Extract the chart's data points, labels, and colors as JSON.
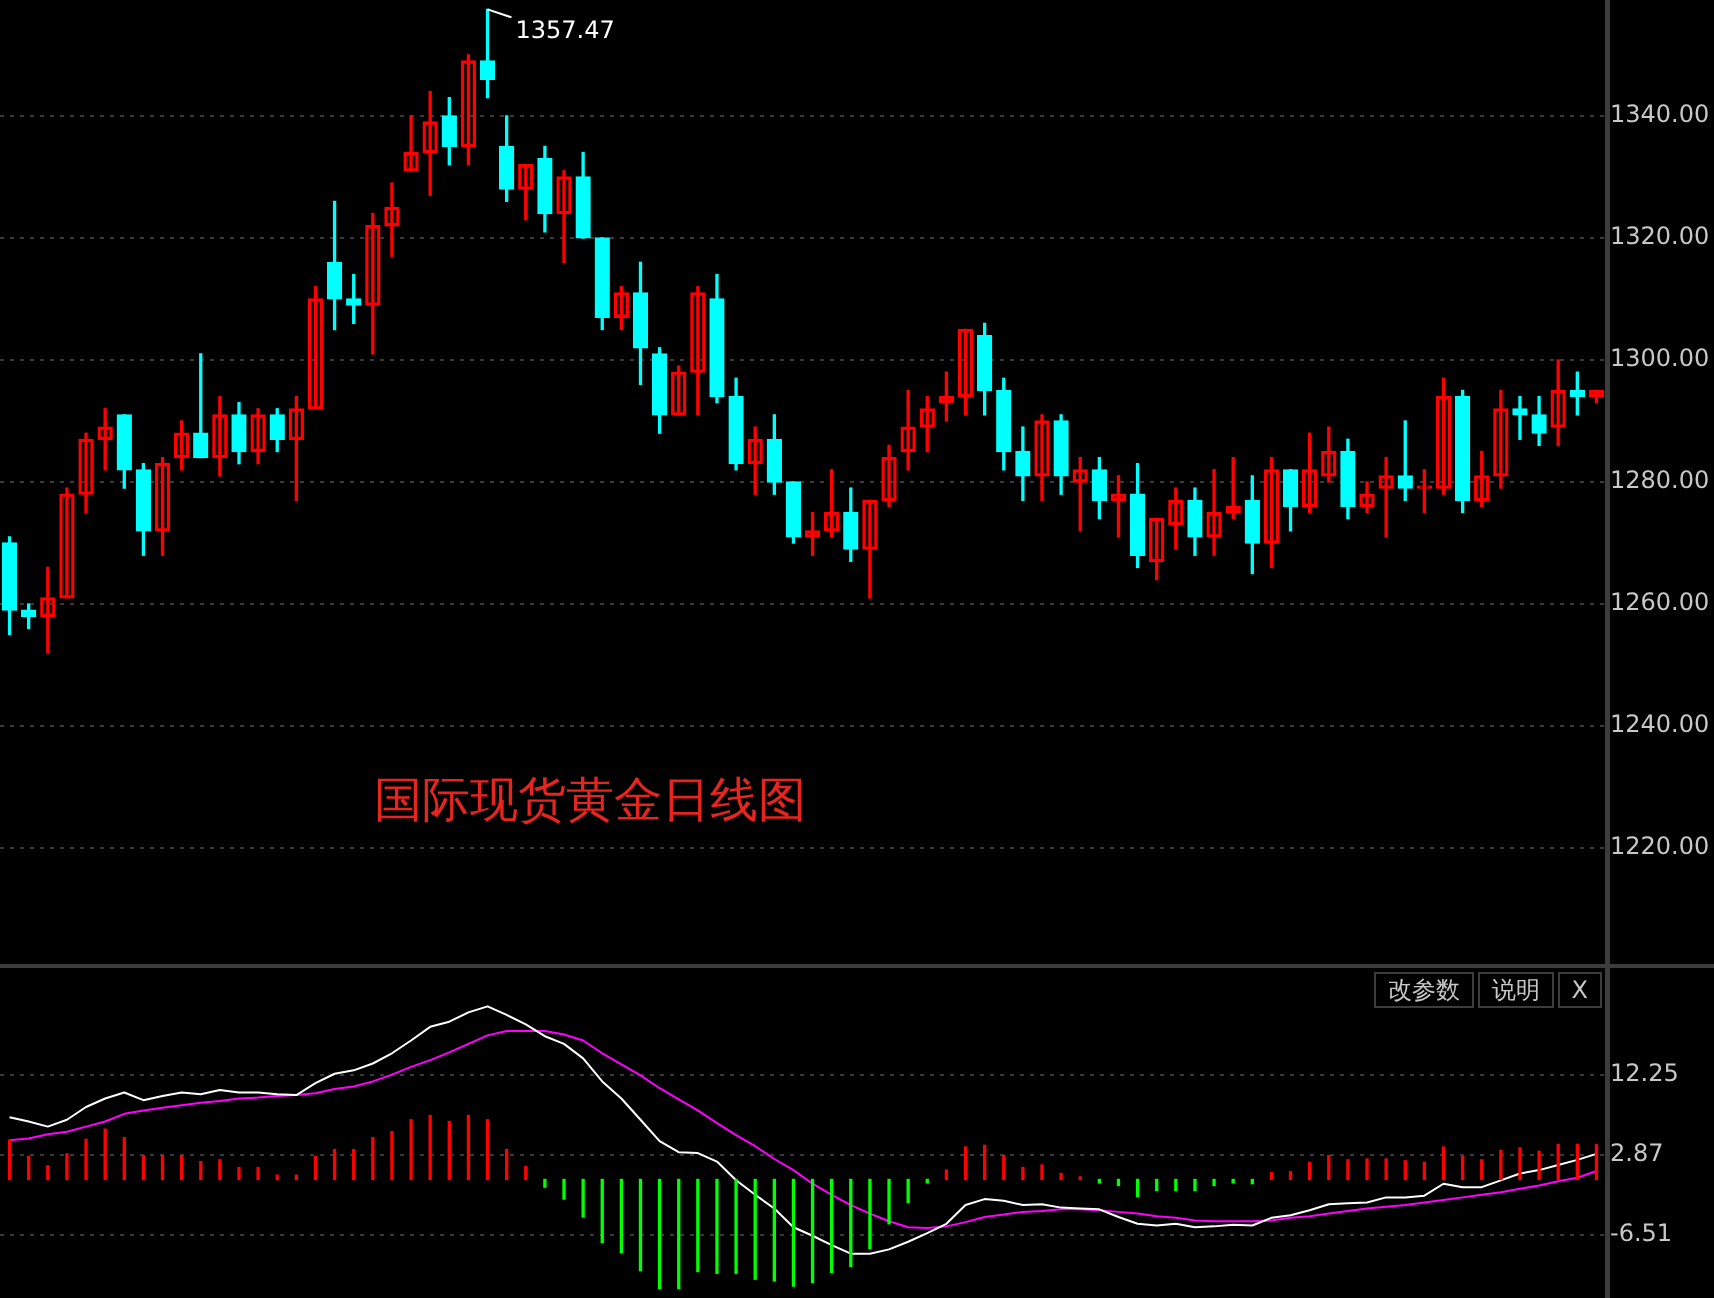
{
  "chart_data": [
    {
      "type": "candlestick",
      "categories": [
        null,
        null,
        null,
        null,
        null,
        null,
        null,
        null,
        null,
        null,
        null,
        null,
        null,
        null,
        null,
        null,
        null,
        null,
        null,
        null,
        null,
        null,
        null,
        null,
        null,
        null,
        null,
        null,
        null,
        null,
        null,
        null,
        null,
        null,
        null,
        null,
        null,
        null,
        null,
        null,
        null,
        null,
        null,
        null,
        null,
        null,
        null,
        null,
        null,
        null,
        null,
        null,
        null,
        null,
        null,
        null,
        null,
        null,
        null,
        null,
        null,
        null,
        null,
        null,
        null,
        null,
        null,
        null,
        null,
        null,
        null,
        null,
        null,
        null,
        null,
        null,
        null,
        null,
        null,
        null,
        null,
        null,
        null,
        null
      ],
      "ohlc": [
        [
          1270,
          1271,
          1255,
          1259
        ],
        [
          1259,
          1260,
          1256,
          1258
        ],
        [
          1258,
          1266,
          1252,
          1261
        ],
        [
          1261,
          1279,
          1261,
          1278
        ],
        [
          1278,
          1288,
          1275,
          1287
        ],
        [
          1287,
          1292,
          1282,
          1289
        ],
        [
          1291,
          1291,
          1279,
          1282
        ],
        [
          1282,
          1283,
          1268,
          1272
        ],
        [
          1272,
          1284,
          1268,
          1283
        ],
        [
          1284,
          1290,
          1282,
          1288
        ],
        [
          1288,
          1301,
          1284,
          1284
        ],
        [
          1284,
          1294,
          1281,
          1291
        ],
        [
          1291,
          1293,
          1283,
          1285
        ],
        [
          1285,
          1292,
          1283,
          1291
        ],
        [
          1291,
          1292,
          1285,
          1287
        ],
        [
          1287,
          1294,
          1277,
          1292
        ],
        [
          1292,
          1312,
          1292,
          1310
        ],
        [
          1316,
          1326,
          1305,
          1310
        ],
        [
          1310,
          1314,
          1306,
          1309
        ],
        [
          1309,
          1324,
          1301,
          1322
        ],
        [
          1322,
          1329,
          1317,
          1325
        ],
        [
          1331,
          1340,
          1331,
          1334
        ],
        [
          1334,
          1344,
          1327,
          1339
        ],
        [
          1340,
          1343,
          1332,
          1335
        ],
        [
          1335,
          1350,
          1332,
          1349
        ],
        [
          1349,
          1357.47,
          1343,
          1346
        ],
        [
          1335,
          1340,
          1326,
          1328
        ],
        [
          1328,
          1332,
          1323,
          1332
        ],
        [
          1333,
          1335,
          1321,
          1324
        ],
        [
          1324,
          1331,
          1316,
          1330
        ],
        [
          1330,
          1334,
          1320,
          1320
        ],
        [
          1320,
          1320,
          1305,
          1307
        ],
        [
          1307,
          1312,
          1305,
          1311
        ],
        [
          1311,
          1316,
          1296,
          1302
        ],
        [
          1301,
          1302,
          1288,
          1291
        ],
        [
          1291,
          1299,
          1291,
          1298
        ],
        [
          1298,
          1312,
          1291,
          1311
        ],
        [
          1310,
          1314,
          1293,
          1294
        ],
        [
          1294,
          1297,
          1282,
          1283
        ],
        [
          1283,
          1289,
          1278,
          1287
        ],
        [
          1287,
          1291,
          1278,
          1280
        ],
        [
          1280,
          1280,
          1270,
          1271
        ],
        [
          1271,
          1275,
          1268,
          1272
        ],
        [
          1272,
          1282,
          1271,
          1275
        ],
        [
          1275,
          1279,
          1267,
          1269
        ],
        [
          1269,
          1277,
          1261,
          1277
        ],
        [
          1277,
          1286,
          1276,
          1284
        ],
        [
          1285,
          1295,
          1282,
          1289
        ],
        [
          1289,
          1294,
          1285,
          1292
        ],
        [
          1293,
          1298,
          1290,
          1294
        ],
        [
          1294,
          1305,
          1291,
          1305
        ],
        [
          1304,
          1306,
          1291,
          1295
        ],
        [
          1295,
          1297,
          1282,
          1285
        ],
        [
          1285,
          1289,
          1277,
          1281
        ],
        [
          1281,
          1291,
          1277,
          1290
        ],
        [
          1290,
          1291,
          1278,
          1281
        ],
        [
          1280,
          1284,
          1272,
          1282
        ],
        [
          1282,
          1284,
          1274,
          1277
        ],
        [
          1277,
          1281,
          1271,
          1278
        ],
        [
          1278,
          1283,
          1266,
          1268
        ],
        [
          1267,
          1274,
          1264,
          1274
        ],
        [
          1273,
          1279,
          1269,
          1277
        ],
        [
          1277,
          1279,
          1268,
          1271
        ],
        [
          1271,
          1282,
          1268,
          1275
        ],
        [
          1275,
          1284,
          1274,
          1276
        ],
        [
          1277,
          1281,
          1265,
          1270
        ],
        [
          1270,
          1284,
          1266,
          1282
        ],
        [
          1282,
          1282,
          1272,
          1276
        ],
        [
          1276,
          1288,
          1275,
          1282
        ],
        [
          1281,
          1289,
          1280,
          1285
        ],
        [
          1285,
          1287,
          1274,
          1276
        ],
        [
          1276,
          1280,
          1275,
          1278
        ],
        [
          1279,
          1284,
          1271,
          1281
        ],
        [
          1281,
          1290,
          1277,
          1279
        ],
        [
          1279,
          1282,
          1275,
          1279
        ],
        [
          1279,
          1297,
          1278,
          1294
        ],
        [
          1294,
          1295,
          1275,
          1277
        ],
        [
          1277,
          1285,
          1276,
          1281
        ],
        [
          1281,
          1295,
          1279,
          1292
        ],
        [
          1292,
          1294,
          1287,
          1291
        ],
        [
          1291,
          1294,
          1286,
          1288
        ],
        [
          1289,
          1300,
          1286,
          1295
        ],
        [
          1295,
          1298,
          1291,
          1294
        ],
        [
          1294,
          1295,
          1293,
          1295
        ]
      ],
      "colors": [
        "#00ffff",
        "#00ffff",
        "#ff0000",
        "#ff0000",
        "#ff0000",
        "#ff0000",
        "#00ffff",
        "#00ffff",
        "#ff0000",
        "#ff0000",
        "#00ffff",
        "#ff0000",
        "#00ffff",
        "#ff0000",
        "#00ffff",
        "#ff0000",
        "#ff0000",
        "#00ffff",
        "#00ffff",
        "#ff0000",
        "#ff0000",
        "#ff0000",
        "#ff0000",
        "#00ffff",
        "#ff0000",
        "#00ffff",
        "#00ffff",
        "#ff0000",
        "#00ffff",
        "#ff0000",
        "#00ffff",
        "#00ffff",
        "#ff0000",
        "#00ffff",
        "#00ffff",
        "#ff0000",
        "#ff0000",
        "#00ffff",
        "#00ffff",
        "#ff0000",
        "#00ffff",
        "#00ffff",
        "#ff0000",
        "#ff0000",
        "#00ffff",
        "#ff0000",
        "#ff0000",
        "#ff0000",
        "#ff0000",
        "#ff0000",
        "#ff0000",
        "#00ffff",
        "#00ffff",
        "#00ffff",
        "#ff0000",
        "#00ffff",
        "#ff0000",
        "#00ffff",
        "#ff0000",
        "#00ffff",
        "#ff0000",
        "#ff0000",
        "#00ffff",
        "#ff0000",
        "#ff0000",
        "#00ffff",
        "#ff0000",
        "#00ffff",
        "#ff0000",
        "#ff0000",
        "#00ffff",
        "#ff0000",
        "#ff0000",
        "#00ffff",
        "#ff0000",
        "#ff0000",
        "#00ffff",
        "#ff0000",
        "#ff0000",
        "#00ffff",
        "#00ffff",
        "#ff0000",
        "#00ffff",
        "#ff0000"
      ],
      "ylim": [
        1201,
        1359
      ],
      "yticks": [
        {
          "value": 1220,
          "label": "1220.00"
        },
        {
          "value": 1240,
          "label": "1240.00"
        },
        {
          "value": 1260,
          "label": "1260.00"
        },
        {
          "value": 1280,
          "label": "1280.00"
        },
        {
          "value": 1300,
          "label": "1300.00"
        },
        {
          "value": 1320,
          "label": "1320.00"
        },
        {
          "value": 1340,
          "label": "1340.00"
        }
      ],
      "grid": "y",
      "tick_labels": "y",
      "legend": false,
      "annotations": [
        "1357.47",
        "国际现货黄金日线图"
      ]
    },
    {
      "type": "bar",
      "categories": [
        null,
        null,
        null,
        null,
        null,
        null,
        null,
        null,
        null,
        null,
        null,
        null,
        null,
        null,
        null,
        null,
        null,
        null,
        null,
        null,
        null,
        null,
        null,
        null,
        null,
        null,
        null,
        null,
        null,
        null,
        null,
        null,
        null,
        null,
        null,
        null,
        null,
        null,
        null,
        null,
        null,
        null,
        null,
        null,
        null,
        null,
        null,
        null,
        null,
        null,
        null,
        null,
        null,
        null,
        null,
        null,
        null,
        null,
        null,
        null,
        null,
        null,
        null,
        null,
        null,
        null,
        null,
        null,
        null,
        null,
        null,
        null,
        null,
        null,
        null,
        null,
        null,
        null,
        null,
        null,
        null,
        null,
        null,
        null
      ],
      "series": [
        {
          "type": "bar",
          "colors": [
            "#ff0000",
            "#ff0000",
            "#ff0000",
            "#ff0000",
            "#ff0000",
            "#ff0000",
            "#ff0000",
            "#ff0000",
            "#ff0000",
            "#ff0000",
            "#ff0000",
            "#ff0000",
            "#ff0000",
            "#ff0000",
            "#ff0000",
            "#ff0000",
            "#ff0000",
            "#ff0000",
            "#ff0000",
            "#ff0000",
            "#ff0000",
            "#ff0000",
            "#ff0000",
            "#ff0000",
            "#ff0000",
            "#ff0000",
            "#ff0000",
            "#ff0000",
            "#00ff00",
            "#00ff00",
            "#00ff00",
            "#00ff00",
            "#00ff00",
            "#00ff00",
            "#00ff00",
            "#00ff00",
            "#00ff00",
            "#00ff00",
            "#00ff00",
            "#00ff00",
            "#00ff00",
            "#00ff00",
            "#00ff00",
            "#00ff00",
            "#00ff00",
            "#00ff00",
            "#00ff00",
            "#00ff00",
            "#00ff00",
            "#ff0000",
            "#ff0000",
            "#ff0000",
            "#ff0000",
            "#ff0000",
            "#ff0000",
            "#ff0000",
            "#ff0000",
            "#00ff00",
            "#00ff00",
            "#00ff00",
            "#00ff00",
            "#00ff00",
            "#00ff00",
            "#00ff00",
            "#00ff00",
            "#00ff00",
            "#ff0000",
            "#ff0000",
            "#ff0000",
            "#ff0000",
            "#ff0000",
            "#ff0000",
            "#ff0000",
            "#ff0000",
            "#ff0000",
            "#ff0000",
            "#ff0000",
            "#ff0000",
            "#ff0000",
            "#ff0000",
            "#ff0000",
            "#ff0000",
            "#ff0000",
            "#ff0000"
          ],
          "values": [
            4.6,
            2.7,
            1.6,
            3.0,
            4.7,
            5.9,
            4.9,
            2.8,
            2.8,
            2.8,
            2.1,
            2.3,
            1.4,
            1.4,
            0.5,
            0.5,
            2.7,
            3.5,
            3.5,
            4.9,
            5.6,
            7.0,
            7.5,
            6.8,
            7.5,
            7.0,
            3.5,
            1.5,
            -0.9,
            -2.3,
            -4.4,
            -7.4,
            -8.6,
            -10.7,
            -12.8,
            -12.8,
            -10.8,
            -11.0,
            -11.0,
            -11.7,
            -11.9,
            -12.5,
            -12.1,
            -10.9,
            -10.2,
            -8.1,
            -5.2,
            -2.7,
            -0.4,
            1.1,
            3.8,
            4.0,
            2.8,
            1.4,
            1.7,
            0.7,
            0.3,
            -0.4,
            -0.7,
            -2.0,
            -1.3,
            -1.3,
            -1.3,
            -0.7,
            -0.4,
            -0.5,
            0.8,
            0.9,
            2.0,
            2.8,
            2.3,
            2.4,
            2.4,
            2.2,
            2.0,
            3.8,
            2.7,
            2.3,
            3.4,
            3.7,
            3.3,
            4.1,
            4.1,
            4.1
          ]
        },
        {
          "type": "line",
          "color": "#ffffff",
          "values": [
            7.3,
            6.8,
            6.2,
            7.0,
            8.5,
            9.5,
            10.2,
            9.3,
            9.8,
            10.2,
            10.0,
            10.5,
            10.2,
            10.2,
            10.0,
            9.9,
            11.3,
            12.4,
            12.8,
            13.6,
            14.8,
            16.3,
            17.9,
            18.5,
            19.6,
            20.3,
            19.3,
            18.2,
            16.8,
            15.9,
            14.2,
            11.5,
            9.5,
            7.0,
            4.5,
            3.2,
            3.1,
            2.1,
            -0.1,
            -1.8,
            -3.4,
            -5.6,
            -6.6,
            -7.7,
            -8.7,
            -8.7,
            -8.2,
            -7.3,
            -6.3,
            -5.2,
            -3.0,
            -2.3,
            -2.5,
            -3.0,
            -2.9,
            -3.3,
            -3.4,
            -3.5,
            -4.4,
            -5.2,
            -5.4,
            -5.2,
            -5.6,
            -5.5,
            -5.3,
            -5.4,
            -4.5,
            -4.2,
            -3.6,
            -2.9,
            -2.8,
            -2.7,
            -2.1,
            -2.1,
            -1.9,
            -0.5,
            -0.9,
            -0.9,
            -0.1,
            0.7,
            1.1,
            1.7,
            2.3,
            3.0
          ]
        },
        {
          "type": "line",
          "color": "#ff00ff",
          "values": [
            4.6,
            4.8,
            5.3,
            5.6,
            6.2,
            6.8,
            7.7,
            8.1,
            8.4,
            8.7,
            9.0,
            9.2,
            9.5,
            9.6,
            9.8,
            9.9,
            10.1,
            10.6,
            10.9,
            11.5,
            12.3,
            13.2,
            14.0,
            14.9,
            15.9,
            16.9,
            17.4,
            17.4,
            17.4,
            17.0,
            16.3,
            14.8,
            13.5,
            12.2,
            10.7,
            9.4,
            8.1,
            6.6,
            5.2,
            3.9,
            2.4,
            1.1,
            -0.5,
            -1.8,
            -3.0,
            -4.0,
            -4.9,
            -5.6,
            -5.7,
            -5.5,
            -5.0,
            -4.4,
            -4.1,
            -3.8,
            -3.7,
            -3.5,
            -3.5,
            -3.6,
            -3.8,
            -4.0,
            -4.3,
            -4.5,
            -4.8,
            -4.9,
            -4.9,
            -4.9,
            -4.8,
            -4.5,
            -4.3,
            -4.0,
            -3.7,
            -3.4,
            -3.2,
            -3.0,
            -2.7,
            -2.4,
            -2.1,
            -1.8,
            -1.5,
            -1.1,
            -0.7,
            -0.2,
            0.2,
            1.0
          ]
        }
      ],
      "ylim": [
        -13.9,
        24.8
      ],
      "yticks": [
        12.25,
        2.87,
        -6.51
      ],
      "grid": "y",
      "tick_labels": "y",
      "legend": false,
      "annotations": [
        "改参数",
        "说明",
        "X"
      ]
    }
  ]
}
